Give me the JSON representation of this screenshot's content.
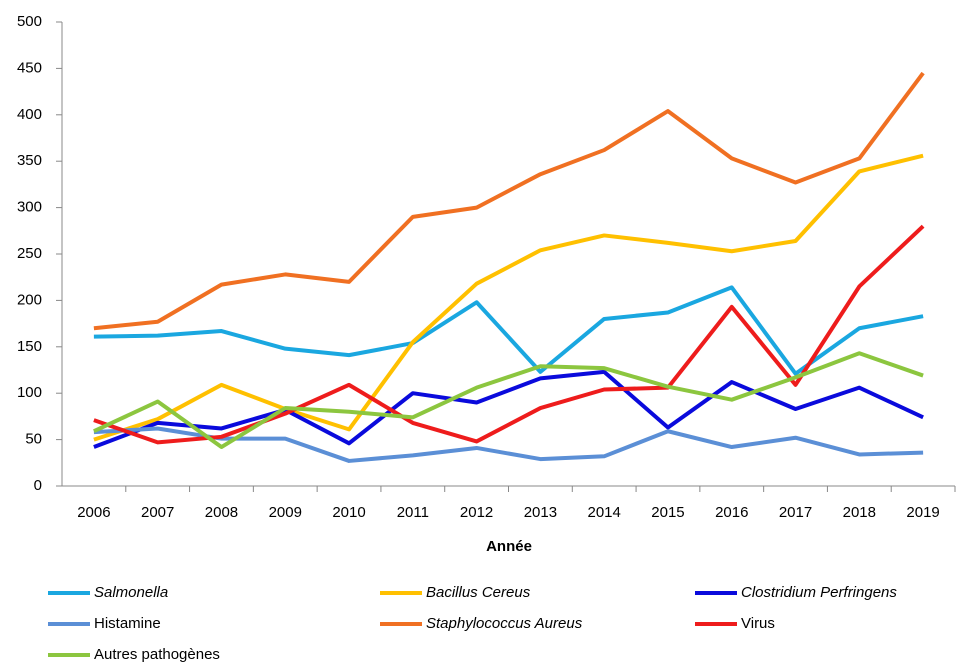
{
  "chart_data": {
    "type": "line",
    "x_label": "Année",
    "categories": [
      "2006",
      "2007",
      "2008",
      "2009",
      "2010",
      "2011",
      "2012",
      "2013",
      "2014",
      "2015",
      "2016",
      "2017",
      "2018",
      "2019"
    ],
    "ylim": [
      0,
      500
    ],
    "yticks": [
      0,
      50,
      100,
      150,
      200,
      250,
      300,
      350,
      400,
      450,
      500
    ],
    "grid": false,
    "legend": "bottom",
    "series": [
      {
        "name": "Salmonella",
        "color": "#1aa7e0",
        "values": [
          161,
          162,
          167,
          148,
          141,
          154,
          198,
          123,
          180,
          187,
          214,
          121,
          170,
          183
        ]
      },
      {
        "name": "Bacillus Cereus",
        "color": "#ffc000",
        "values": [
          50,
          72,
          109,
          83,
          61,
          155,
          218,
          254,
          270,
          262,
          253,
          264,
          339,
          356
        ]
      },
      {
        "name": "Clostridium Perfringens",
        "color": "#0a0adc",
        "values": [
          42,
          68,
          62,
          82,
          46,
          100,
          90,
          116,
          123,
          63,
          112,
          83,
          106,
          74
        ]
      },
      {
        "name": "Histamine",
        "color": "#5b8fd6",
        "values": [
          58,
          62,
          51,
          51,
          27,
          33,
          41,
          29,
          32,
          59,
          42,
          52,
          34,
          36
        ]
      },
      {
        "name": "Staphylococcus Aureus",
        "color": "#f07022",
        "values": [
          170,
          177,
          217,
          228,
          220,
          290,
          300,
          336,
          362,
          404,
          353,
          327,
          353,
          445
        ]
      },
      {
        "name": "Virus",
        "color": "#ee1c1c",
        "values": [
          71,
          47,
          53,
          78,
          109,
          68,
          48,
          84,
          104,
          106,
          193,
          109,
          215,
          280
        ]
      },
      {
        "name": "Autres pathogènes",
        "color": "#8cc63f",
        "values": [
          59,
          91,
          42,
          84,
          80,
          74,
          106,
          129,
          127,
          107,
          93,
          117,
          143,
          119
        ]
      }
    ]
  }
}
